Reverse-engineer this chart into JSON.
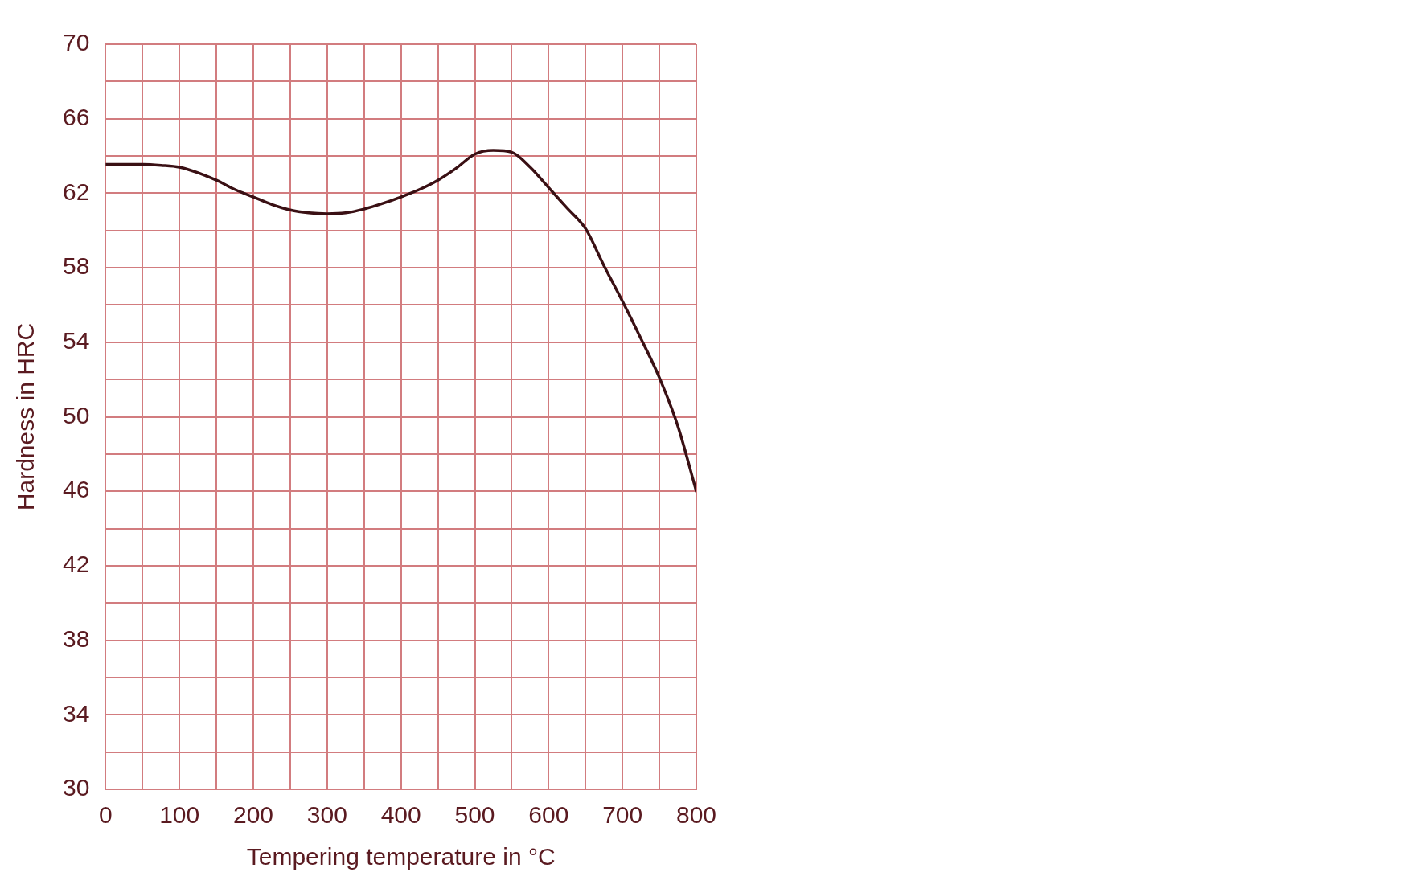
{
  "chart_data": {
    "type": "line",
    "xlabel": "Tempering temperature in °C",
    "ylabel": "Hardness in HRC",
    "x": [
      0,
      25,
      50,
      75,
      100,
      125,
      150,
      175,
      200,
      225,
      250,
      275,
      300,
      325,
      350,
      375,
      400,
      425,
      450,
      475,
      500,
      525,
      550,
      575,
      600,
      625,
      650,
      675,
      700,
      725,
      750,
      775,
      800
    ],
    "series": [
      {
        "color": "#3a1014",
        "values": [
          63.55,
          63.55,
          63.55,
          63.5,
          63.4,
          63.1,
          62.7,
          62.2,
          61.8,
          61.4,
          61.1,
          60.95,
          60.9,
          60.95,
          61.15,
          61.45,
          61.8,
          62.2,
          62.7,
          63.35,
          64.1,
          64.3,
          64.2,
          63.4,
          62.3,
          61.2,
          60.1,
          58.1,
          56.2,
          54.2,
          52.1,
          49.5,
          46.0
        ]
      }
    ],
    "xlim": [
      0,
      800
    ],
    "xticks": [
      0,
      {
        "value": 50,
        "label": null
      },
      100,
      {
        "value": 150,
        "label": null
      },
      200,
      {
        "value": 250,
        "label": null
      },
      300,
      {
        "value": 350,
        "label": null
      },
      400,
      {
        "value": 450,
        "label": null
      },
      500,
      {
        "value": 550,
        "label": null
      },
      600,
      {
        "value": 650,
        "label": null
      },
      700,
      {
        "value": 750,
        "label": null
      },
      800
    ],
    "ylim": [
      30,
      70
    ],
    "yticks": [
      30,
      {
        "value": 32,
        "label": null
      },
      34,
      {
        "value": 36,
        "label": null
      },
      38,
      {
        "value": 40,
        "label": null
      },
      42,
      {
        "value": 44,
        "label": null
      },
      46,
      {
        "value": 48,
        "label": null
      },
      50,
      {
        "value": 52,
        "label": null
      },
      54,
      {
        "value": 56,
        "label": null
      },
      58,
      {
        "value": 60,
        "label": null
      },
      62,
      {
        "value": 64,
        "label": null
      },
      66,
      {
        "value": 68,
        "label": null
      },
      70
    ],
    "grid": true,
    "legend": false,
    "marker": "none",
    "line_style": "solid"
  }
}
